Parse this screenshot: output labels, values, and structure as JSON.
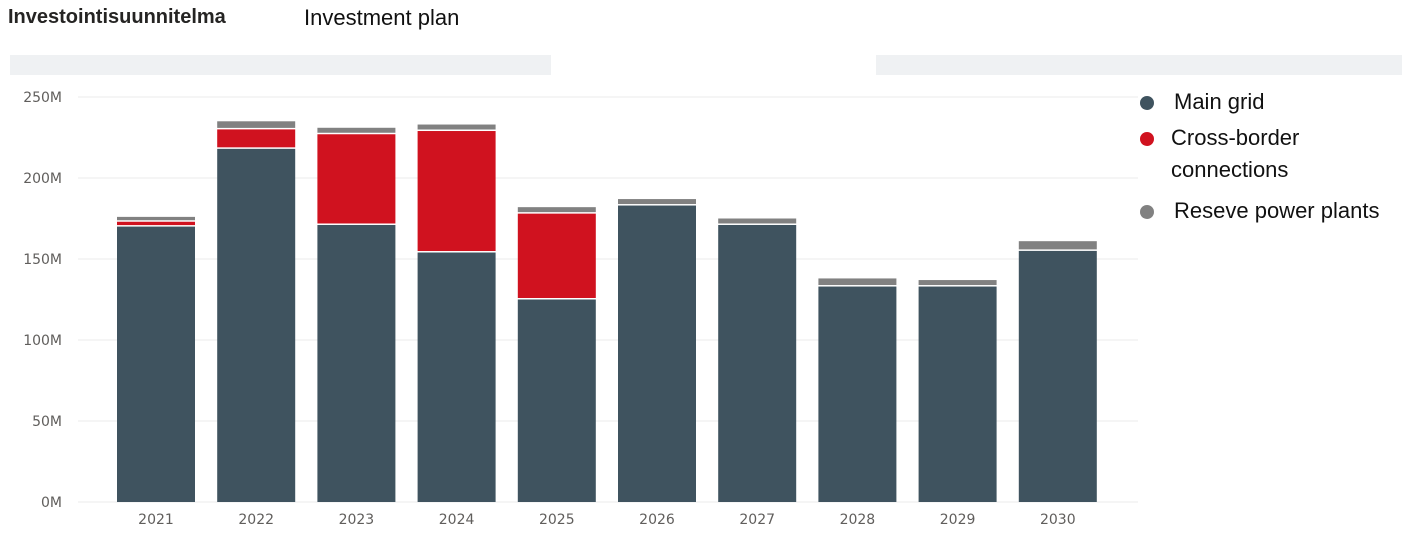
{
  "header": {
    "title": "Investointisuunnitelma",
    "subtitle": "Investment plan"
  },
  "chart_data": {
    "type": "bar",
    "stacked": true,
    "categories": [
      "2021",
      "2022",
      "2023",
      "2024",
      "2025",
      "2026",
      "2027",
      "2028",
      "2029",
      "2030"
    ],
    "series": [
      {
        "name": "Main grid",
        "color": "#3f535f",
        "values": [
          170,
          218,
          171,
          154,
          125,
          183,
          171,
          133,
          133,
          155
        ]
      },
      {
        "name": "Cross-border connections",
        "color": "#d0121f",
        "values": [
          3,
          12,
          56,
          75,
          53,
          0,
          0,
          0,
          0,
          0
        ]
      },
      {
        "name": "Reseve power plants",
        "color": "#818181",
        "values": [
          3,
          5,
          4,
          4,
          4,
          4,
          4,
          5,
          4,
          6
        ]
      }
    ],
    "yticks": [
      "0M",
      "50M",
      "100M",
      "150M",
      "200M",
      "250M"
    ],
    "ytick_values": [
      0,
      50,
      100,
      150,
      200,
      250
    ],
    "ylim": [
      0,
      250
    ],
    "grid": true,
    "legend_position": "right"
  }
}
